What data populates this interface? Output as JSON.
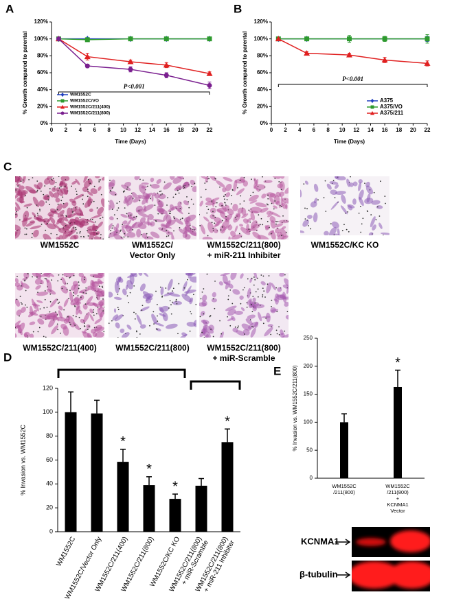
{
  "figure": {
    "panel_labels": [
      "A",
      "B",
      "C",
      "D",
      "E"
    ],
    "images": [
      {
        "caption": [
          "WM1552C"
        ]
      },
      {
        "caption": [
          "WM1552C/",
          "Vector Only"
        ]
      },
      {
        "caption": [
          "WM1552C/211(800)",
          "+ miR-211 Inhibiter"
        ]
      },
      {
        "caption": [
          "WM1552C/KC KO"
        ]
      },
      {
        "caption": [
          "WM1552C/211(400)"
        ]
      },
      {
        "caption": [
          "WM1552C/211(800)"
        ]
      },
      {
        "caption": [
          "WM1552C/211(800)",
          "+ miR-Scramble"
        ]
      }
    ],
    "blot_labels": [
      "KCNMA1",
      "β-tubulin"
    ]
  },
  "chart_data": [
    {
      "type": "line",
      "x_label": "Time (Days)",
      "y_label": "% Growth compared to parental",
      "annotation": "P<0.001",
      "legend": "lower left",
      "x": [
        1,
        5,
        11,
        16,
        22
      ],
      "xlim": [
        0,
        22
      ],
      "xticks": [
        0,
        2,
        4,
        6,
        8,
        10,
        12,
        14,
        16,
        18,
        20,
        22
      ],
      "ylim": [
        0,
        120
      ],
      "yticks": [
        {
          "value": 0,
          "label": "0%"
        },
        {
          "value": 20,
          "label": "20%"
        },
        {
          "value": 40,
          "label": "40%"
        },
        {
          "value": 60,
          "label": "60%"
        },
        {
          "value": 80,
          "label": "80%"
        },
        {
          "value": 100,
          "label": "100%"
        },
        {
          "value": 120,
          "label": "120%"
        }
      ],
      "series": [
        {
          "name": "WM1552C",
          "color": "#1f3fbf",
          "marker": "diamond",
          "values": [
            100,
            100,
            100,
            100,
            100
          ],
          "errors": [
            0,
            1,
            1,
            1,
            1
          ]
        },
        {
          "name": "WM1552C/VO",
          "color": "#2e9a2e",
          "marker": "square",
          "values": [
            100,
            99,
            100,
            100,
            100
          ],
          "errors": [
            0,
            1,
            2,
            2,
            2
          ]
        },
        {
          "name": "WM1552C/211(400)",
          "color": "#e02020",
          "marker": "triangle",
          "values": [
            100,
            79,
            73,
            69,
            59
          ],
          "errors": [
            0,
            4,
            2,
            3,
            2
          ]
        },
        {
          "name": "WM1552C/211(800)",
          "color": "#7a1f8f",
          "marker": "circle",
          "values": [
            100,
            68,
            64,
            57,
            45
          ],
          "errors": [
            0,
            2,
            3,
            3,
            4
          ]
        }
      ]
    },
    {
      "type": "line",
      "x_label": "Time (Days)",
      "y_label": "% Growth compared to parental",
      "annotation": "P<0.001",
      "legend": "lower right",
      "x": [
        1,
        5,
        11,
        16,
        22
      ],
      "xlim": [
        0,
        22
      ],
      "xticks": [
        0,
        2,
        4,
        6,
        8,
        10,
        12,
        14,
        16,
        18,
        20,
        22
      ],
      "ylim": [
        0,
        120
      ],
      "yticks": [
        {
          "value": 0,
          "label": "0%"
        },
        {
          "value": 20,
          "label": "20%"
        },
        {
          "value": 40,
          "label": "40%"
        },
        {
          "value": 60,
          "label": "60%"
        },
        {
          "value": 80,
          "label": "80%"
        },
        {
          "value": 100,
          "label": "100%"
        },
        {
          "value": 120,
          "label": "120%"
        }
      ],
      "series": [
        {
          "name": "A375",
          "color": "#1f3fbf",
          "marker": "diamond",
          "values": [
            100,
            100,
            100,
            100,
            100
          ],
          "errors": [
            0,
            2,
            2,
            2,
            3
          ]
        },
        {
          "name": "A375/VO",
          "color": "#2e9a2e",
          "marker": "square",
          "values": [
            100,
            100,
            100,
            100,
            100
          ],
          "errors": [
            0,
            2,
            4,
            3,
            5
          ]
        },
        {
          "name": "A375/211",
          "color": "#e02020",
          "marker": "triangle",
          "values": [
            100,
            83,
            81,
            75,
            71
          ],
          "errors": [
            0,
            2,
            2,
            3,
            3
          ]
        }
      ]
    },
    {
      "type": "bar",
      "y_label": "% Invasion vs. WM1552C",
      "color": "#000000",
      "categories": [
        [
          "WM1552C"
        ],
        [
          "WM1552C/Vector Only"
        ],
        [
          "WM1552C/211(400)"
        ],
        [
          "WM1552C/211(800)"
        ],
        [
          "WM1552C/KC KO"
        ],
        [
          "WM1552C/211(800)",
          "+ miR-Scramble"
        ],
        [
          "WM1552C/211(800)",
          "+ miR-211 Inhibiter"
        ]
      ],
      "values": [
        100,
        99,
        58.5,
        39,
        27.5,
        38.5,
        75
      ],
      "errors": [
        17,
        11,
        10.5,
        7,
        4,
        6,
        11
      ],
      "significance": [
        null,
        null,
        "*",
        "*",
        "*",
        null,
        "*"
      ],
      "ylim": [
        0,
        120
      ],
      "yticks": [
        0,
        20,
        40,
        60,
        80,
        100,
        120
      ]
    },
    {
      "type": "bar",
      "y_label": "% Invasion vs. WM1552C/211(800)",
      "color": "#000000",
      "categories": [
        [
          "WM1552C",
          "/211(800)"
        ],
        [
          "WM1552C",
          "/211(800)",
          "+",
          "KCNMA1",
          "Vector"
        ]
      ],
      "values": [
        100,
        163
      ],
      "errors": [
        15,
        30
      ],
      "significance": [
        null,
        "*"
      ],
      "ylim": [
        0,
        250
      ],
      "yticks": [
        0,
        50,
        100,
        150,
        200,
        250
      ]
    }
  ]
}
